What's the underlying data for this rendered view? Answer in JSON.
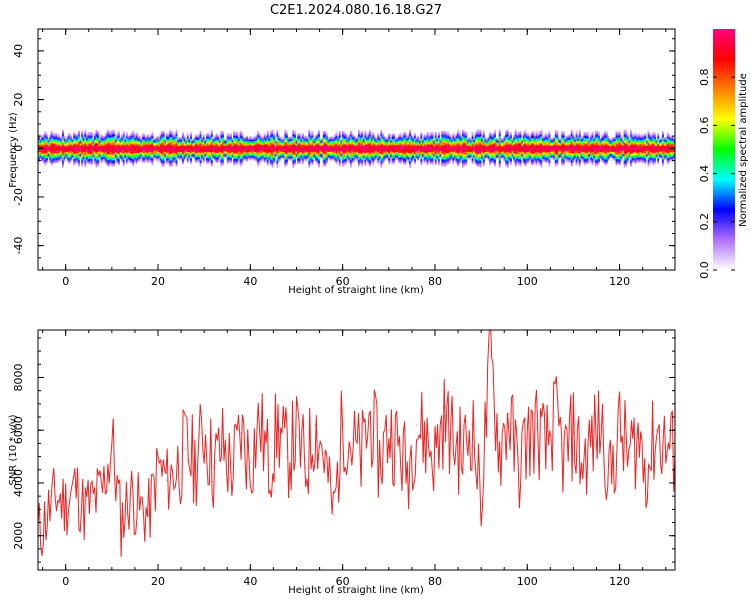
{
  "title": "C2E1.2024.080.16.18.G27",
  "chart_data": [
    {
      "type": "heatmap",
      "title": "C2E1.2024.080.16.18.G27",
      "xlabel": "Height of straight line (km)",
      "ylabel": "Frequency (Hz)",
      "xlim": [
        -6,
        132
      ],
      "ylim": [
        -50,
        49
      ],
      "x_ticks": [
        0,
        20,
        40,
        60,
        80,
        100,
        120
      ],
      "x_tick_labels": [
        "0",
        "20",
        "40",
        "60",
        "80",
        "100",
        "120"
      ],
      "y_ticks": [
        -40,
        -20,
        0,
        20,
        40
      ],
      "y_tick_labels": [
        "-40",
        "-20",
        "0",
        "20",
        "40"
      ],
      "grid": false,
      "description_of_values": "energy concentrated in a narrow band around 0 Hz across all heights, peak amplitude near 0 Hz",
      "band_center_hz": 0,
      "band_halfwidth_hz": 4,
      "colorbar": {
        "label": "Normalized spectral amplitude",
        "range": [
          0,
          1
        ],
        "ticks": [
          0.0,
          0.2,
          0.4,
          0.6,
          0.8
        ],
        "tick_labels": [
          "0.0",
          "0.2",
          "0.4",
          "0.6",
          "0.8"
        ],
        "colors": [
          "#ffffff",
          "#b070ff",
          "#0000ff",
          "#00ffff",
          "#00ff00",
          "#ffff00",
          "#ff8000",
          "#ff0000",
          "#ff0080"
        ]
      }
    },
    {
      "type": "line",
      "xlabel": "Height of straight line (km)",
      "ylabel": "SNR (10 * v/v)",
      "xlim": [
        -6,
        132
      ],
      "ylim": [
        700,
        9800
      ],
      "x_ticks": [
        0,
        20,
        40,
        60,
        80,
        100,
        120
      ],
      "x_tick_labels": [
        "0",
        "20",
        "40",
        "60",
        "80",
        "100",
        "120"
      ],
      "y_ticks": [
        2000,
        4000,
        6000,
        8000
      ],
      "y_tick_labels": [
        "2000",
        "4000",
        "6000",
        "8000"
      ],
      "grid": false,
      "color": "#ee2222",
      "x": [
        -6,
        -4,
        -2,
        0,
        2,
        4,
        6,
        8,
        10,
        12,
        14,
        16,
        18,
        20,
        22,
        24,
        26,
        28,
        30,
        32,
        34,
        36,
        38,
        40,
        42,
        44,
        46,
        48,
        50,
        52,
        54,
        56,
        58,
        60,
        62,
        64,
        66,
        68,
        70,
        72,
        74,
        76,
        78,
        80,
        82,
        84,
        86,
        88,
        90,
        92,
        94,
        96,
        98,
        100,
        102,
        104,
        106,
        108,
        110,
        112,
        114,
        116,
        118,
        120,
        122,
        124,
        126,
        128,
        130,
        132
      ],
      "values": [
        2000,
        2800,
        3500,
        3200,
        3900,
        3000,
        3300,
        3700,
        5500,
        2500,
        3600,
        3000,
        2800,
        4600,
        4100,
        4500,
        5300,
        4700,
        6000,
        4600,
        5400,
        4400,
        5900,
        4800,
        6300,
        4700,
        6100,
        5000,
        5800,
        4600,
        6200,
        5100,
        2800,
        6300,
        5500,
        4900,
        6500,
        4800,
        6000,
        5400,
        4500,
        6200,
        5700,
        5000,
        6500,
        5600,
        5100,
        6200,
        3400,
        8800,
        5200,
        6600,
        4500,
        5700,
        6100,
        5200,
        6500,
        4900,
        5900,
        4700,
        5600,
        6200,
        4300,
        6000,
        5000,
        5700,
        4500,
        6000,
        5400,
        5100
      ]
    }
  ]
}
